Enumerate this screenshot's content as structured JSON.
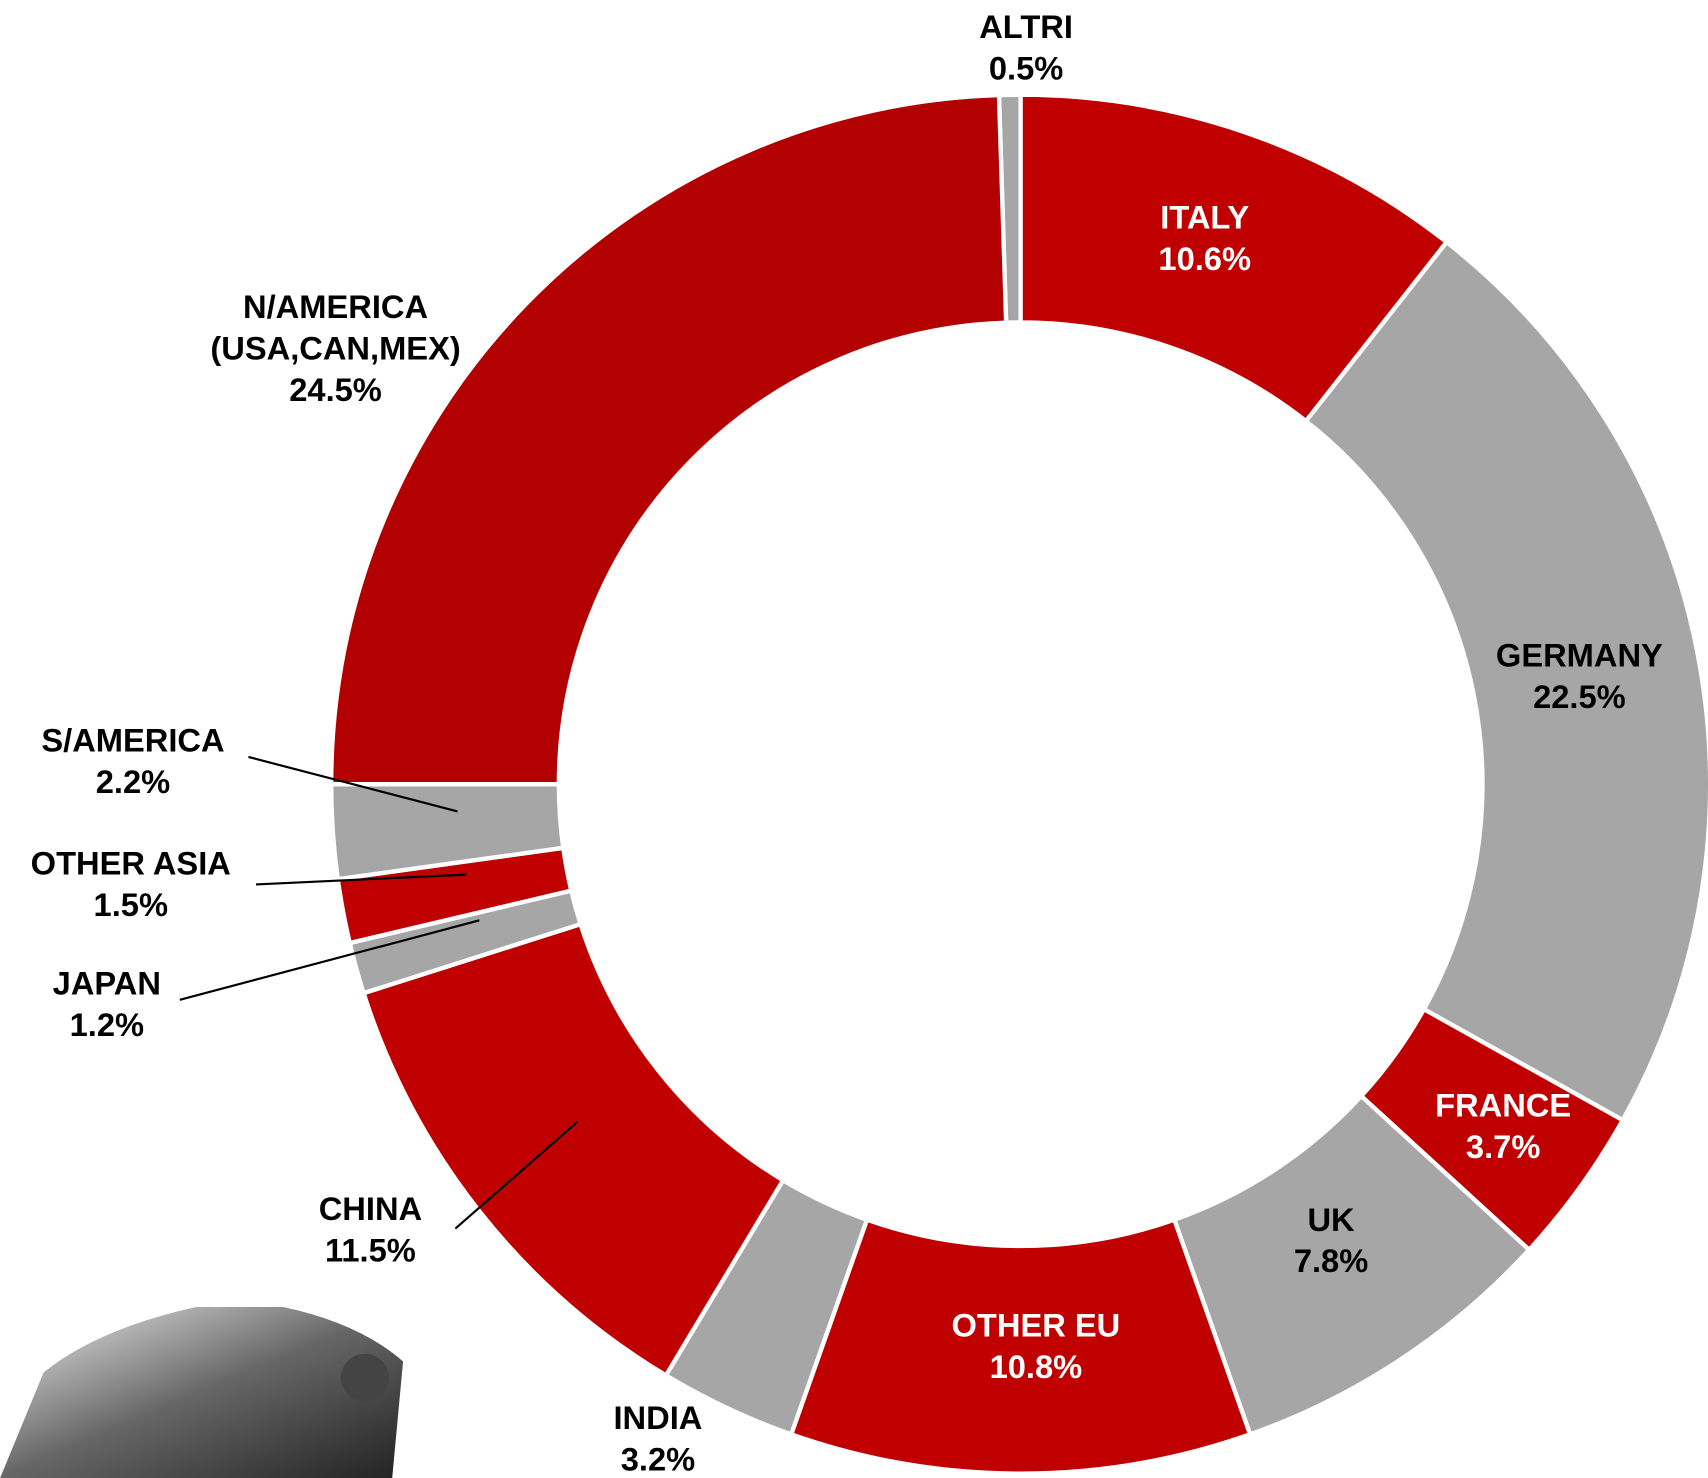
{
  "chart_data": {
    "type": "donut",
    "categories": [
      "ALTRI",
      "ITALY",
      "GERMANY",
      "FRANCE",
      "UK",
      "OTHER EU",
      "INDIA",
      "CHINA",
      "JAPAN",
      "OTHER ASIA",
      "S/AMERICA",
      "N/AMERICA\n(USA,CAN,MEX)"
    ],
    "values": [
      0.5,
      10.6,
      22.5,
      3.7,
      7.8,
      10.8,
      3.2,
      11.5,
      1.2,
      1.5,
      2.2,
      24.5
    ],
    "value_labels": [
      "0.5%",
      "10.6%",
      "22.5%",
      "3.7%",
      "7.8%",
      "10.8%",
      "3.2%",
      "11.5%",
      "1.2%",
      "1.5%",
      "2.2%",
      "24.5%"
    ],
    "colors": [
      "#a6a6a6",
      "#c00000",
      "#a6a6a6",
      "#c00000",
      "#a6a6a6",
      "#c00000",
      "#a6a6a6",
      "#c00000",
      "#a6a6a6",
      "#c00000",
      "#a6a6a6",
      "#b30000"
    ]
  }
}
